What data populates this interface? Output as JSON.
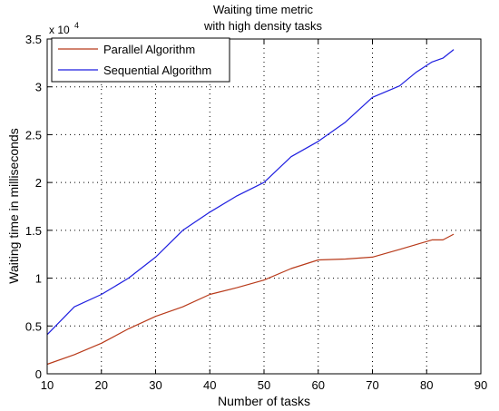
{
  "chart_data": {
    "type": "line",
    "title": [
      "Waiting time metric",
      "with high density tasks"
    ],
    "xlabel": "Number of tasks",
    "ylabel": "Waiting time in milliseconds",
    "y_exponent_base": "x 10",
    "y_exponent_power": "4",
    "xlim": [
      10,
      90
    ],
    "ylim": [
      0,
      35000
    ],
    "xticks": [
      10,
      20,
      30,
      40,
      50,
      60,
      70,
      80,
      90
    ],
    "yticks": [
      0,
      5000,
      10000,
      15000,
      20000,
      25000,
      30000,
      35000
    ],
    "ytick_labels": [
      "0",
      "0.5",
      "1",
      "1.5",
      "2",
      "2.5",
      "3",
      "3.5"
    ],
    "grid": "dotted",
    "legend_position": "top-left",
    "series": [
      {
        "name": "Parallel Algorithm",
        "color": "#b83a1a",
        "x": [
          10,
          15,
          20,
          25,
          30,
          35,
          40,
          45,
          50,
          55,
          60,
          65,
          70,
          75,
          78,
          81,
          83,
          85
        ],
        "values": [
          1000,
          2000,
          3200,
          4700,
          6000,
          7000,
          8300,
          9000,
          9800,
          11000,
          11900,
          12000,
          12200,
          13000,
          13500,
          14000,
          14000,
          14600
        ]
      },
      {
        "name": "Sequential Algorithm",
        "color": "#1f1fe0",
        "x": [
          10,
          15,
          20,
          25,
          30,
          35,
          40,
          45,
          50,
          55,
          60,
          65,
          70,
          75,
          78,
          81,
          83,
          85
        ],
        "values": [
          4100,
          7000,
          8300,
          10000,
          12200,
          15000,
          16900,
          18600,
          20000,
          22700,
          24300,
          26300,
          28900,
          30100,
          31500,
          32600,
          33000,
          33900
        ]
      }
    ]
  }
}
